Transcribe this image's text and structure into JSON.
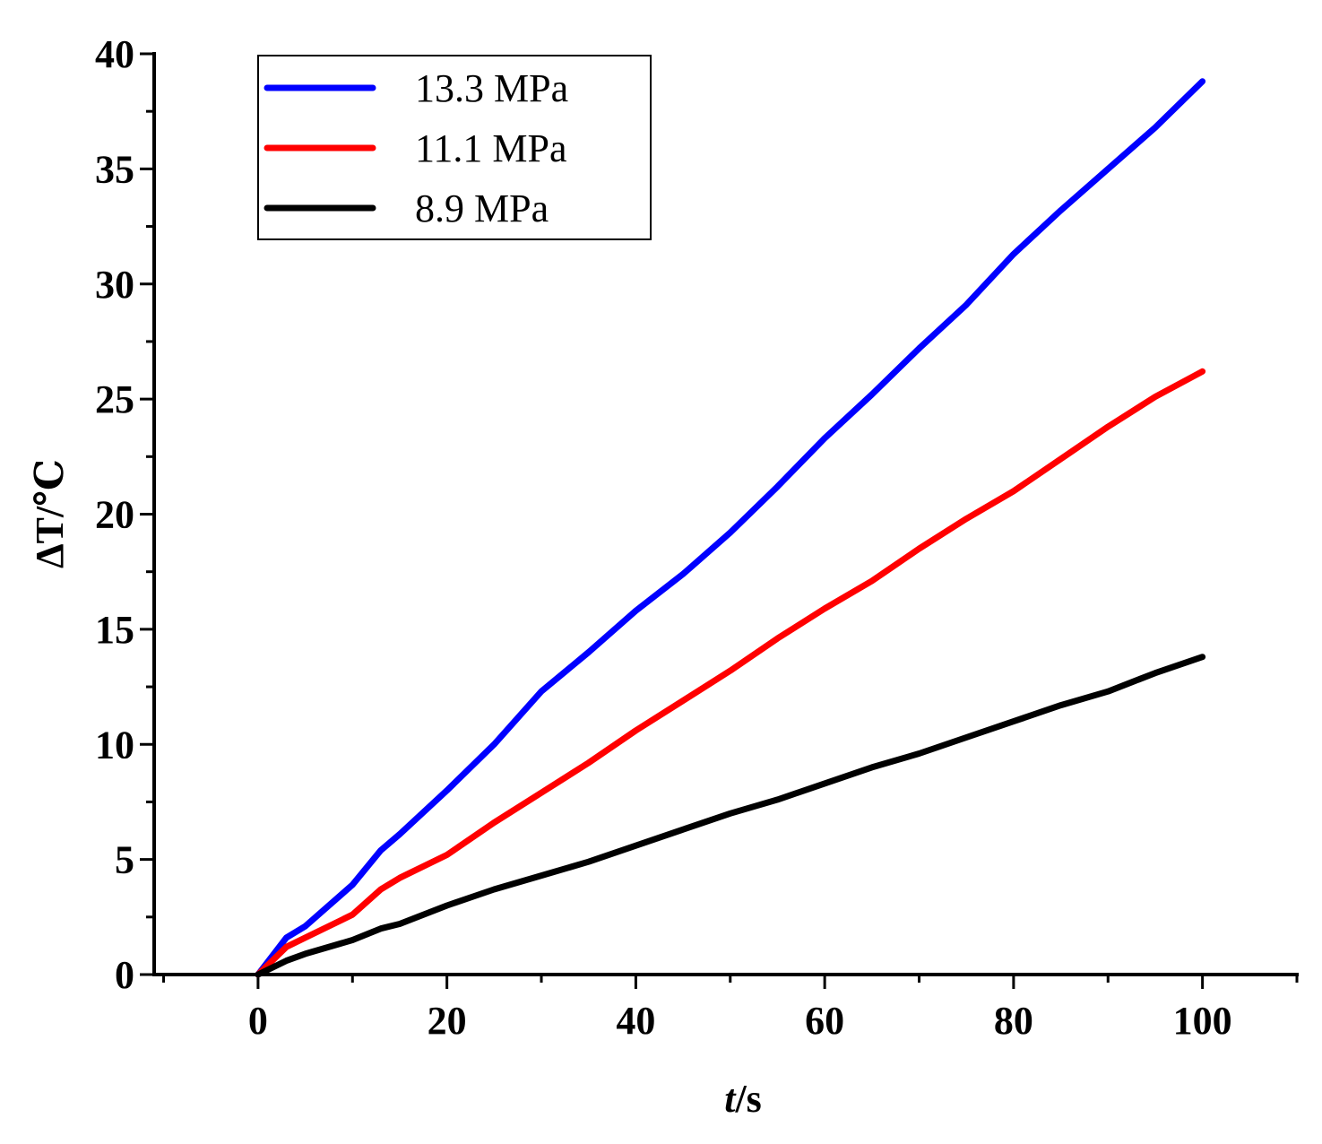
{
  "chart_data": {
    "type": "line",
    "title": "",
    "xlabel_italic": "t",
    "xlabel_rest": "/s",
    "ylabel": "ΔT/℃",
    "xlim": [
      -11,
      110
    ],
    "ylim": [
      0,
      40
    ],
    "x_ticks": [
      0,
      20,
      40,
      60,
      80,
      100
    ],
    "x_tick_labels": [
      "0",
      "20",
      "40",
      "60",
      "80",
      "100"
    ],
    "y_ticks": [
      0,
      5,
      10,
      15,
      20,
      25,
      30,
      35,
      40
    ],
    "y_tick_labels": [
      "0",
      "5",
      "10",
      "15",
      "20",
      "25",
      "30",
      "35",
      "40"
    ],
    "grid": false,
    "legend_position": "top-left",
    "series": [
      {
        "name": "13.3 MPa",
        "color": "#0000ff",
        "x": [
          0,
          3,
          5,
          10,
          13,
          15,
          20,
          25,
          30,
          35,
          40,
          45,
          50,
          55,
          60,
          65,
          70,
          75,
          80,
          85,
          90,
          95,
          100
        ],
        "y": [
          0,
          1.6,
          2.1,
          3.9,
          5.4,
          6.1,
          8.0,
          10.0,
          12.3,
          14.0,
          15.8,
          17.4,
          19.2,
          21.2,
          23.3,
          25.2,
          27.2,
          29.1,
          31.3,
          33.2,
          35.0,
          36.8,
          38.8
        ]
      },
      {
        "name": "11.1 MPa",
        "color": "#ff0000",
        "x": [
          0,
          3,
          5,
          10,
          13,
          15,
          20,
          25,
          30,
          35,
          40,
          45,
          50,
          55,
          60,
          65,
          70,
          75,
          80,
          85,
          90,
          95,
          100
        ],
        "y": [
          0,
          1.2,
          1.6,
          2.6,
          3.7,
          4.2,
          5.2,
          6.6,
          7.9,
          9.2,
          10.6,
          11.9,
          13.2,
          14.6,
          15.9,
          17.1,
          18.5,
          19.8,
          21.0,
          22.4,
          23.8,
          25.1,
          26.2
        ]
      },
      {
        "name": "8.9 MPa",
        "color": "#000000",
        "x": [
          0,
          3,
          5,
          10,
          13,
          15,
          20,
          25,
          30,
          35,
          40,
          45,
          50,
          55,
          60,
          65,
          70,
          75,
          80,
          85,
          90,
          95,
          100
        ],
        "y": [
          0,
          0.6,
          0.9,
          1.5,
          2.0,
          2.2,
          3.0,
          3.7,
          4.3,
          4.9,
          5.6,
          6.3,
          7.0,
          7.6,
          8.3,
          9.0,
          9.6,
          10.3,
          11.0,
          11.7,
          12.3,
          13.1,
          13.8
        ]
      }
    ]
  }
}
